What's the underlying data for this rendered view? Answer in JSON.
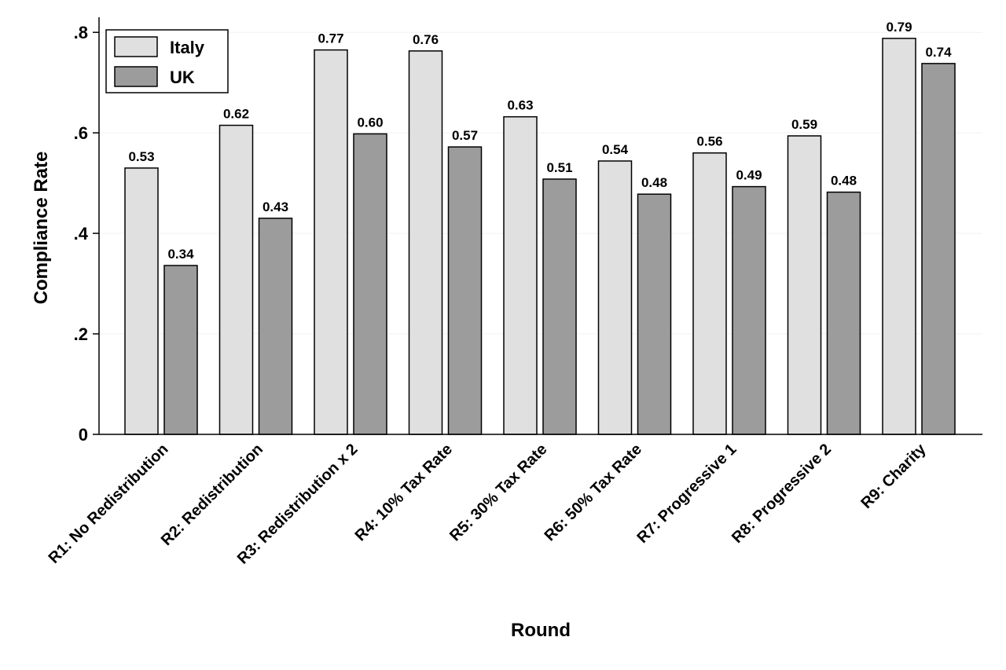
{
  "chart_data": {
    "type": "bar",
    "title": "",
    "xlabel": "Round",
    "ylabel": "Compliance Rate",
    "ylim": [
      0,
      0.83
    ],
    "yticks": [
      {
        "value": 0,
        "label": "0"
      },
      {
        "value": 0.2,
        "label": ".2"
      },
      {
        "value": 0.4,
        "label": ".4"
      },
      {
        "value": 0.6,
        "label": ".6"
      },
      {
        "value": 0.8,
        "label": ".8"
      }
    ],
    "grid": true,
    "legend_position": "top-left",
    "categories": [
      "R1: No Redistribution",
      "R2: Redistribution",
      "R3: Redistribution x 2",
      "R4: 10% Tax Rate",
      "R5: 30% Tax Rate",
      "R6: 50% Tax Rate",
      "R7: Progressive 1",
      "R8: Progressive 2",
      "R9: Charity"
    ],
    "series": [
      {
        "name": "Italy",
        "color": "#e0e0e0",
        "values": [
          0.53,
          0.615,
          0.765,
          0.763,
          0.632,
          0.544,
          0.56,
          0.594,
          0.788
        ],
        "labels": [
          "0.53",
          "0.62",
          "0.77",
          "0.76",
          "0.63",
          "0.54",
          "0.56",
          "0.59",
          "0.79"
        ]
      },
      {
        "name": "UK",
        "color": "#9c9c9c",
        "values": [
          0.336,
          0.43,
          0.598,
          0.572,
          0.508,
          0.478,
          0.493,
          0.482,
          0.738
        ],
        "labels": [
          "0.34",
          "0.43",
          "0.60",
          "0.57",
          "0.51",
          "0.48",
          "0.49",
          "0.48",
          "0.74"
        ]
      }
    ]
  }
}
